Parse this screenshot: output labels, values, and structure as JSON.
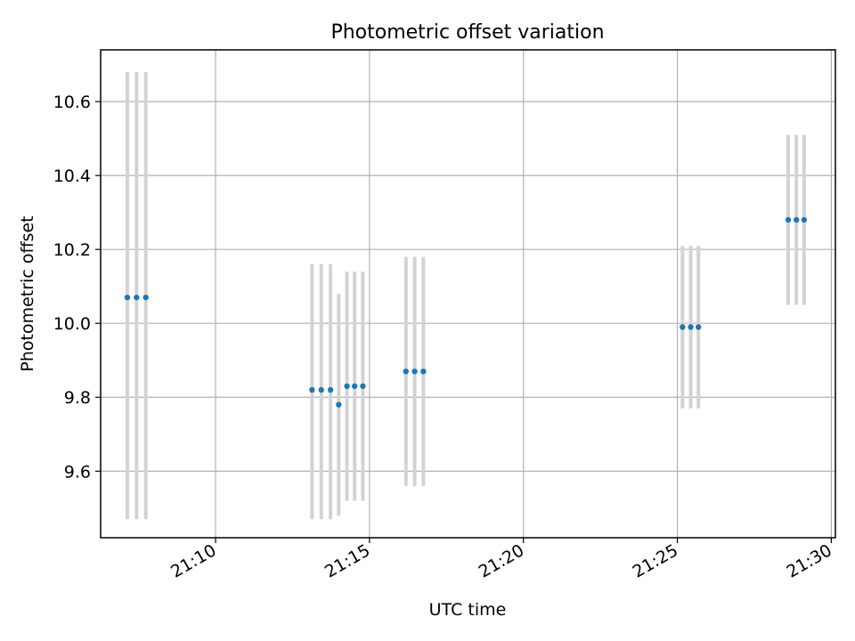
{
  "chart_data": {
    "type": "scatter",
    "title": "Photometric offset variation",
    "xlabel": "UTC time",
    "ylabel": "Photometric offset",
    "x_ticks": [
      "21:10",
      "21:15",
      "21:20",
      "21:25",
      "21:30"
    ],
    "y_ticks": [
      "9.6",
      "9.8",
      "10.0",
      "10.2",
      "10.4",
      "10.6"
    ],
    "xlim": [
      "21:06:16",
      "21:30:08"
    ],
    "ylim": [
      9.42,
      10.74
    ],
    "grid": true,
    "series": [
      {
        "points": [
          {
            "x": "21:07:08",
            "y": 10.07,
            "err_low": 9.47,
            "err_high": 10.68
          },
          {
            "x": "21:07:26",
            "y": 10.07,
            "err_low": 9.47,
            "err_high": 10.68
          },
          {
            "x": "21:07:44",
            "y": 10.07,
            "err_low": 9.47,
            "err_high": 10.68
          },
          {
            "x": "21:13:08",
            "y": 9.82,
            "err_low": 9.47,
            "err_high": 10.16
          },
          {
            "x": "21:13:26",
            "y": 9.82,
            "err_low": 9.47,
            "err_high": 10.16
          },
          {
            "x": "21:13:44",
            "y": 9.82,
            "err_low": 9.47,
            "err_high": 10.16
          },
          {
            "x": "21:14:00",
            "y": 9.78,
            "err_low": 9.48,
            "err_high": 10.08
          },
          {
            "x": "21:14:16",
            "y": 9.83,
            "err_low": 9.52,
            "err_high": 10.14
          },
          {
            "x": "21:14:31",
            "y": 9.83,
            "err_low": 9.52,
            "err_high": 10.14
          },
          {
            "x": "21:14:47",
            "y": 9.83,
            "err_low": 9.52,
            "err_high": 10.14
          },
          {
            "x": "21:16:11",
            "y": 9.87,
            "err_low": 9.56,
            "err_high": 10.18
          },
          {
            "x": "21:16:28",
            "y": 9.87,
            "err_low": 9.56,
            "err_high": 10.18
          },
          {
            "x": "21:16:45",
            "y": 9.87,
            "err_low": 9.56,
            "err_high": 10.18
          },
          {
            "x": "21:25:10",
            "y": 9.99,
            "err_low": 9.77,
            "err_high": 10.21
          },
          {
            "x": "21:25:26",
            "y": 9.99,
            "err_low": 9.77,
            "err_high": 10.21
          },
          {
            "x": "21:25:41",
            "y": 9.99,
            "err_low": 9.77,
            "err_high": 10.21
          },
          {
            "x": "21:28:36",
            "y": 10.28,
            "err_low": 10.05,
            "err_high": 10.51
          },
          {
            "x": "21:28:52",
            "y": 10.28,
            "err_low": 10.05,
            "err_high": 10.51
          },
          {
            "x": "21:29:07",
            "y": 10.28,
            "err_low": 10.05,
            "err_high": 10.51
          }
        ]
      }
    ],
    "colors": {
      "point": "#1f77b4",
      "errorbar": "#d3d3d3",
      "grid": "#b0b0b0",
      "axes": "#000000"
    }
  }
}
